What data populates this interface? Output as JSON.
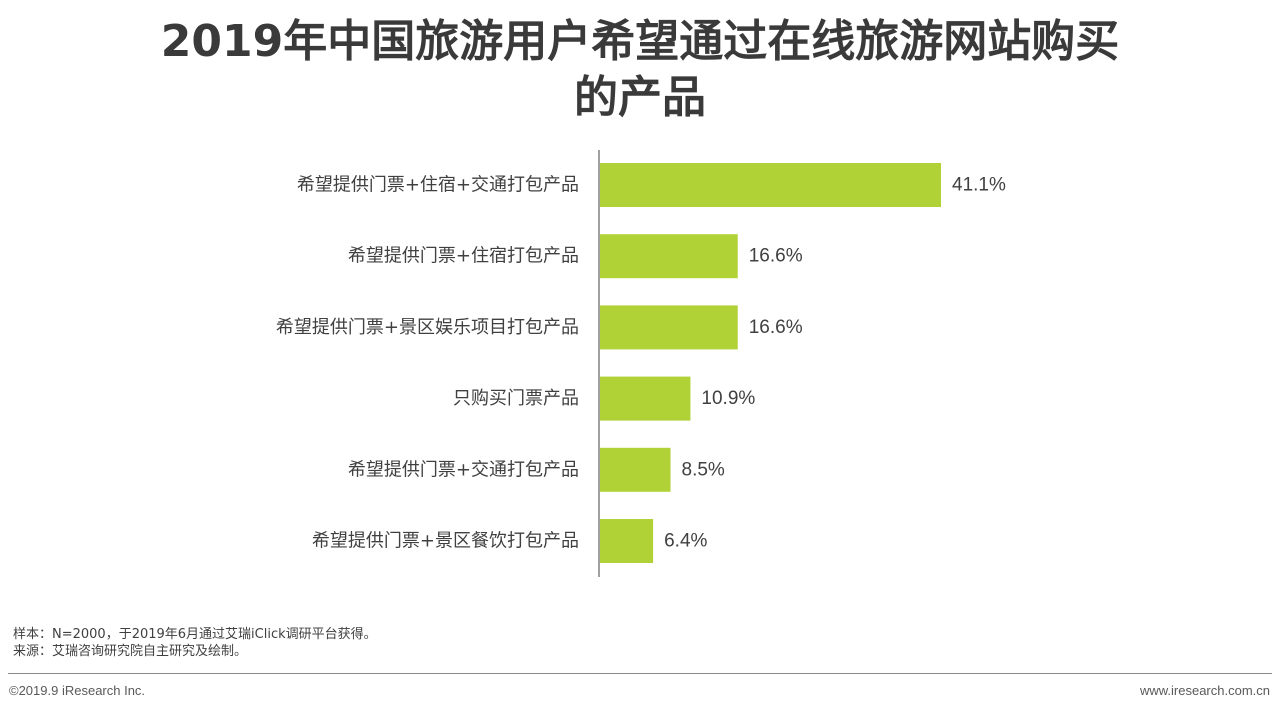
{
  "title": {
    "line1": "2019年中国旅游用户希望通过在线旅游网站购买",
    "line2": "的产品"
  },
  "chart_data": {
    "type": "bar",
    "orientation": "horizontal",
    "categories": [
      "希望提供门票+住宿+交通打包产品",
      "希望提供门票+住宿打包产品",
      "希望提供门票+景区娱乐项目打包产品",
      "只购买门票产品",
      "希望提供门票+交通打包产品",
      "希望提供门票+景区餐饮打包产品"
    ],
    "values": [
      41.1,
      16.6,
      16.6,
      10.9,
      8.5,
      6.4
    ],
    "value_labels": [
      "41.1%",
      "16.6%",
      "16.6%",
      "10.9%",
      "8.5%",
      "6.4%"
    ],
    "unit": "%",
    "xlim": [
      0,
      41.1
    ],
    "bar_color": "#b0d236",
    "grid": false,
    "legend": "none"
  },
  "notes": {
    "sample": "样本：N=2000，于2019年6月通过艾瑞iClick调研平台获得。",
    "source": "来源：艾瑞咨询研究院自主研究及绘制。"
  },
  "footer": {
    "copyright": "©2019.9 iResearch Inc.",
    "website": "www.iresearch.com.cn"
  }
}
